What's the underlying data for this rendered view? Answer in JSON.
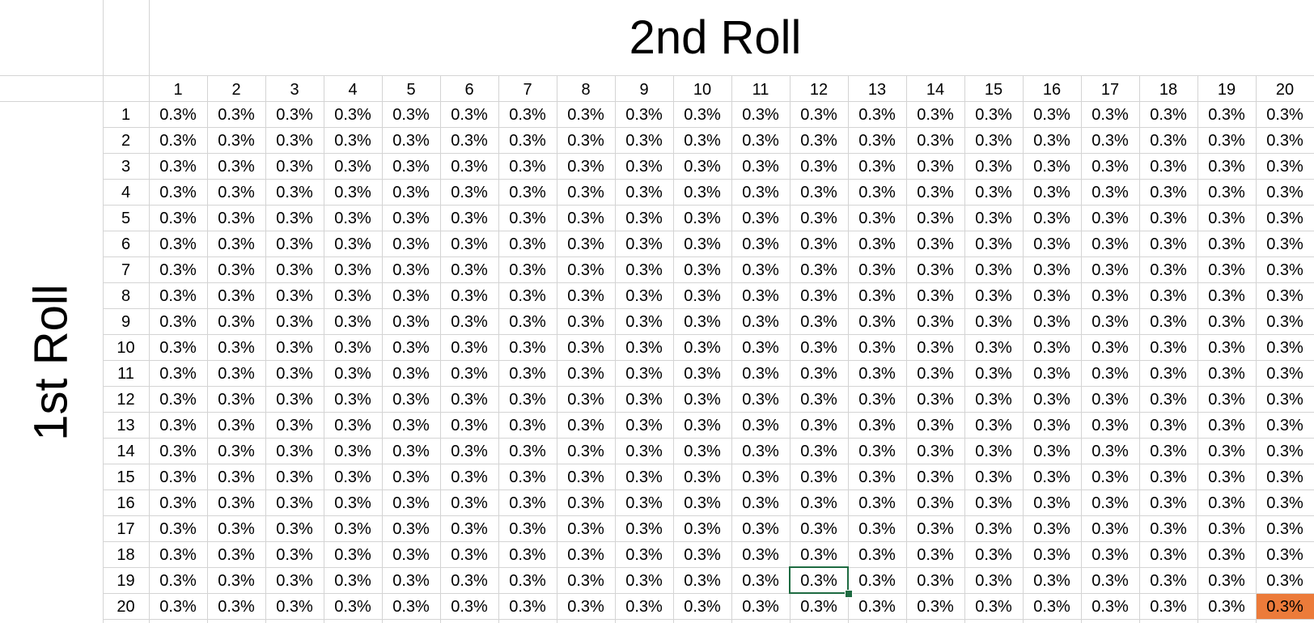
{
  "column_title": "2nd Roll",
  "row_title": "1st Roll",
  "column_headers": [
    "1",
    "2",
    "3",
    "4",
    "5",
    "6",
    "7",
    "8",
    "9",
    "10",
    "11",
    "12",
    "13",
    "14",
    "15",
    "16",
    "17",
    "18",
    "19",
    "20"
  ],
  "row_headers": [
    "1",
    "2",
    "3",
    "4",
    "5",
    "6",
    "7",
    "8",
    "9",
    "10",
    "11",
    "12",
    "13",
    "14",
    "15",
    "16",
    "17",
    "18",
    "19",
    "20"
  ],
  "cell_value": "0.3%",
  "cells": [
    [
      "0.3%",
      "0.3%",
      "0.3%",
      "0.3%",
      "0.3%",
      "0.3%",
      "0.3%",
      "0.3%",
      "0.3%",
      "0.3%",
      "0.3%",
      "0.3%",
      "0.3%",
      "0.3%",
      "0.3%",
      "0.3%",
      "0.3%",
      "0.3%",
      "0.3%",
      "0.3%"
    ],
    [
      "0.3%",
      "0.3%",
      "0.3%",
      "0.3%",
      "0.3%",
      "0.3%",
      "0.3%",
      "0.3%",
      "0.3%",
      "0.3%",
      "0.3%",
      "0.3%",
      "0.3%",
      "0.3%",
      "0.3%",
      "0.3%",
      "0.3%",
      "0.3%",
      "0.3%",
      "0.3%"
    ],
    [
      "0.3%",
      "0.3%",
      "0.3%",
      "0.3%",
      "0.3%",
      "0.3%",
      "0.3%",
      "0.3%",
      "0.3%",
      "0.3%",
      "0.3%",
      "0.3%",
      "0.3%",
      "0.3%",
      "0.3%",
      "0.3%",
      "0.3%",
      "0.3%",
      "0.3%",
      "0.3%"
    ],
    [
      "0.3%",
      "0.3%",
      "0.3%",
      "0.3%",
      "0.3%",
      "0.3%",
      "0.3%",
      "0.3%",
      "0.3%",
      "0.3%",
      "0.3%",
      "0.3%",
      "0.3%",
      "0.3%",
      "0.3%",
      "0.3%",
      "0.3%",
      "0.3%",
      "0.3%",
      "0.3%"
    ],
    [
      "0.3%",
      "0.3%",
      "0.3%",
      "0.3%",
      "0.3%",
      "0.3%",
      "0.3%",
      "0.3%",
      "0.3%",
      "0.3%",
      "0.3%",
      "0.3%",
      "0.3%",
      "0.3%",
      "0.3%",
      "0.3%",
      "0.3%",
      "0.3%",
      "0.3%",
      "0.3%"
    ],
    [
      "0.3%",
      "0.3%",
      "0.3%",
      "0.3%",
      "0.3%",
      "0.3%",
      "0.3%",
      "0.3%",
      "0.3%",
      "0.3%",
      "0.3%",
      "0.3%",
      "0.3%",
      "0.3%",
      "0.3%",
      "0.3%",
      "0.3%",
      "0.3%",
      "0.3%",
      "0.3%"
    ],
    [
      "0.3%",
      "0.3%",
      "0.3%",
      "0.3%",
      "0.3%",
      "0.3%",
      "0.3%",
      "0.3%",
      "0.3%",
      "0.3%",
      "0.3%",
      "0.3%",
      "0.3%",
      "0.3%",
      "0.3%",
      "0.3%",
      "0.3%",
      "0.3%",
      "0.3%",
      "0.3%"
    ],
    [
      "0.3%",
      "0.3%",
      "0.3%",
      "0.3%",
      "0.3%",
      "0.3%",
      "0.3%",
      "0.3%",
      "0.3%",
      "0.3%",
      "0.3%",
      "0.3%",
      "0.3%",
      "0.3%",
      "0.3%",
      "0.3%",
      "0.3%",
      "0.3%",
      "0.3%",
      "0.3%"
    ],
    [
      "0.3%",
      "0.3%",
      "0.3%",
      "0.3%",
      "0.3%",
      "0.3%",
      "0.3%",
      "0.3%",
      "0.3%",
      "0.3%",
      "0.3%",
      "0.3%",
      "0.3%",
      "0.3%",
      "0.3%",
      "0.3%",
      "0.3%",
      "0.3%",
      "0.3%",
      "0.3%"
    ],
    [
      "0.3%",
      "0.3%",
      "0.3%",
      "0.3%",
      "0.3%",
      "0.3%",
      "0.3%",
      "0.3%",
      "0.3%",
      "0.3%",
      "0.3%",
      "0.3%",
      "0.3%",
      "0.3%",
      "0.3%",
      "0.3%",
      "0.3%",
      "0.3%",
      "0.3%",
      "0.3%"
    ],
    [
      "0.3%",
      "0.3%",
      "0.3%",
      "0.3%",
      "0.3%",
      "0.3%",
      "0.3%",
      "0.3%",
      "0.3%",
      "0.3%",
      "0.3%",
      "0.3%",
      "0.3%",
      "0.3%",
      "0.3%",
      "0.3%",
      "0.3%",
      "0.3%",
      "0.3%",
      "0.3%"
    ],
    [
      "0.3%",
      "0.3%",
      "0.3%",
      "0.3%",
      "0.3%",
      "0.3%",
      "0.3%",
      "0.3%",
      "0.3%",
      "0.3%",
      "0.3%",
      "0.3%",
      "0.3%",
      "0.3%",
      "0.3%",
      "0.3%",
      "0.3%",
      "0.3%",
      "0.3%",
      "0.3%"
    ],
    [
      "0.3%",
      "0.3%",
      "0.3%",
      "0.3%",
      "0.3%",
      "0.3%",
      "0.3%",
      "0.3%",
      "0.3%",
      "0.3%",
      "0.3%",
      "0.3%",
      "0.3%",
      "0.3%",
      "0.3%",
      "0.3%",
      "0.3%",
      "0.3%",
      "0.3%",
      "0.3%"
    ],
    [
      "0.3%",
      "0.3%",
      "0.3%",
      "0.3%",
      "0.3%",
      "0.3%",
      "0.3%",
      "0.3%",
      "0.3%",
      "0.3%",
      "0.3%",
      "0.3%",
      "0.3%",
      "0.3%",
      "0.3%",
      "0.3%",
      "0.3%",
      "0.3%",
      "0.3%",
      "0.3%"
    ],
    [
      "0.3%",
      "0.3%",
      "0.3%",
      "0.3%",
      "0.3%",
      "0.3%",
      "0.3%",
      "0.3%",
      "0.3%",
      "0.3%",
      "0.3%",
      "0.3%",
      "0.3%",
      "0.3%",
      "0.3%",
      "0.3%",
      "0.3%",
      "0.3%",
      "0.3%",
      "0.3%"
    ],
    [
      "0.3%",
      "0.3%",
      "0.3%",
      "0.3%",
      "0.3%",
      "0.3%",
      "0.3%",
      "0.3%",
      "0.3%",
      "0.3%",
      "0.3%",
      "0.3%",
      "0.3%",
      "0.3%",
      "0.3%",
      "0.3%",
      "0.3%",
      "0.3%",
      "0.3%",
      "0.3%"
    ],
    [
      "0.3%",
      "0.3%",
      "0.3%",
      "0.3%",
      "0.3%",
      "0.3%",
      "0.3%",
      "0.3%",
      "0.3%",
      "0.3%",
      "0.3%",
      "0.3%",
      "0.3%",
      "0.3%",
      "0.3%",
      "0.3%",
      "0.3%",
      "0.3%",
      "0.3%",
      "0.3%"
    ],
    [
      "0.3%",
      "0.3%",
      "0.3%",
      "0.3%",
      "0.3%",
      "0.3%",
      "0.3%",
      "0.3%",
      "0.3%",
      "0.3%",
      "0.3%",
      "0.3%",
      "0.3%",
      "0.3%",
      "0.3%",
      "0.3%",
      "0.3%",
      "0.3%",
      "0.3%",
      "0.3%"
    ],
    [
      "0.3%",
      "0.3%",
      "0.3%",
      "0.3%",
      "0.3%",
      "0.3%",
      "0.3%",
      "0.3%",
      "0.3%",
      "0.3%",
      "0.3%",
      "0.3%",
      "0.3%",
      "0.3%",
      "0.3%",
      "0.3%",
      "0.3%",
      "0.3%",
      "0.3%",
      "0.3%"
    ],
    [
      "0.3%",
      "0.3%",
      "0.3%",
      "0.3%",
      "0.3%",
      "0.3%",
      "0.3%",
      "0.3%",
      "0.3%",
      "0.3%",
      "0.3%",
      "0.3%",
      "0.3%",
      "0.3%",
      "0.3%",
      "0.3%",
      "0.3%",
      "0.3%",
      "0.3%",
      "0.3%"
    ]
  ],
  "selected_cell": {
    "row": 19,
    "column": 12
  },
  "highlighted_cell": {
    "row": 20,
    "column": 20,
    "fill_color": "#ec7b3a"
  },
  "colors": {
    "gridline": "#d4d4d4",
    "selection_border": "#1e6b41",
    "highlight_fill": "#ec7b3a",
    "text": "#000000"
  }
}
